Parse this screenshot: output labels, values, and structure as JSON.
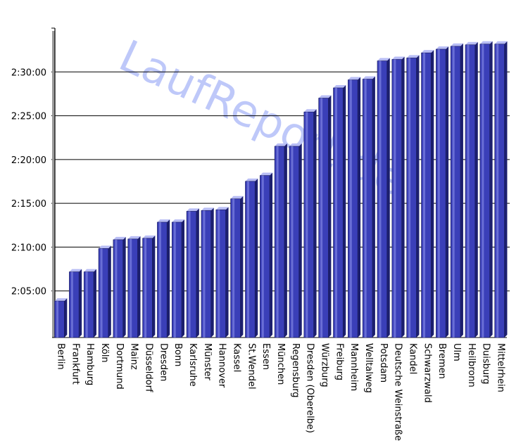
{
  "watermark": "LaufReport.de",
  "colors": {
    "bar_front": "#3a3fb8",
    "bar_top": "#b8bdf5",
    "bar_side": "#1c1f6e",
    "gridline": "#000000",
    "watermark": "#8a9cf5"
  },
  "chart_data": {
    "type": "bar",
    "title": "",
    "xlabel": "",
    "ylabel": "",
    "grid": true,
    "ylim": [
      "2:00:00",
      "2:35:00"
    ],
    "y_ticks": [
      "2:05:00",
      "2:10:00",
      "2:15:00",
      "2:20:00",
      "2:25:00",
      "2:30:00"
    ],
    "categories": [
      "Berlin",
      "Frankfurt",
      "Hamburg",
      "Köln",
      "Dortmund",
      "Mainz",
      "Düsseldorf",
      "Dresden",
      "Bonn",
      "Karlsruhe",
      "Münster",
      "Hannover",
      "Kassel",
      "St.Wendel",
      "Essen",
      "München",
      "Regensburg",
      "Dresden (Oberelbe)",
      "Würzburg",
      "Freiburg",
      "Mannheim",
      "Welltalweg",
      "Potsdam",
      "Deutsche Weinstraße",
      "Kandel",
      "Schwarzwald",
      "Bremen",
      "Ulm",
      "Heilbronn",
      "Duisburg",
      "Mittelrhein"
    ],
    "values": [
      "2:04:10",
      "2:07:30",
      "2:07:30",
      "2:10:10",
      "2:11:10",
      "2:11:15",
      "2:11:20",
      "2:13:10",
      "2:13:10",
      "2:14:25",
      "2:14:30",
      "2:14:35",
      "2:15:50",
      "2:17:50",
      "2:18:30",
      "2:21:50",
      "2:21:50",
      "2:25:45",
      "2:27:20",
      "2:28:30",
      "2:29:25",
      "2:29:30",
      "2:31:35",
      "2:31:45",
      "2:31:55",
      "2:32:30",
      "2:32:55",
      "2:33:15",
      "2:33:25",
      "2:33:30",
      "2:33:30"
    ]
  }
}
